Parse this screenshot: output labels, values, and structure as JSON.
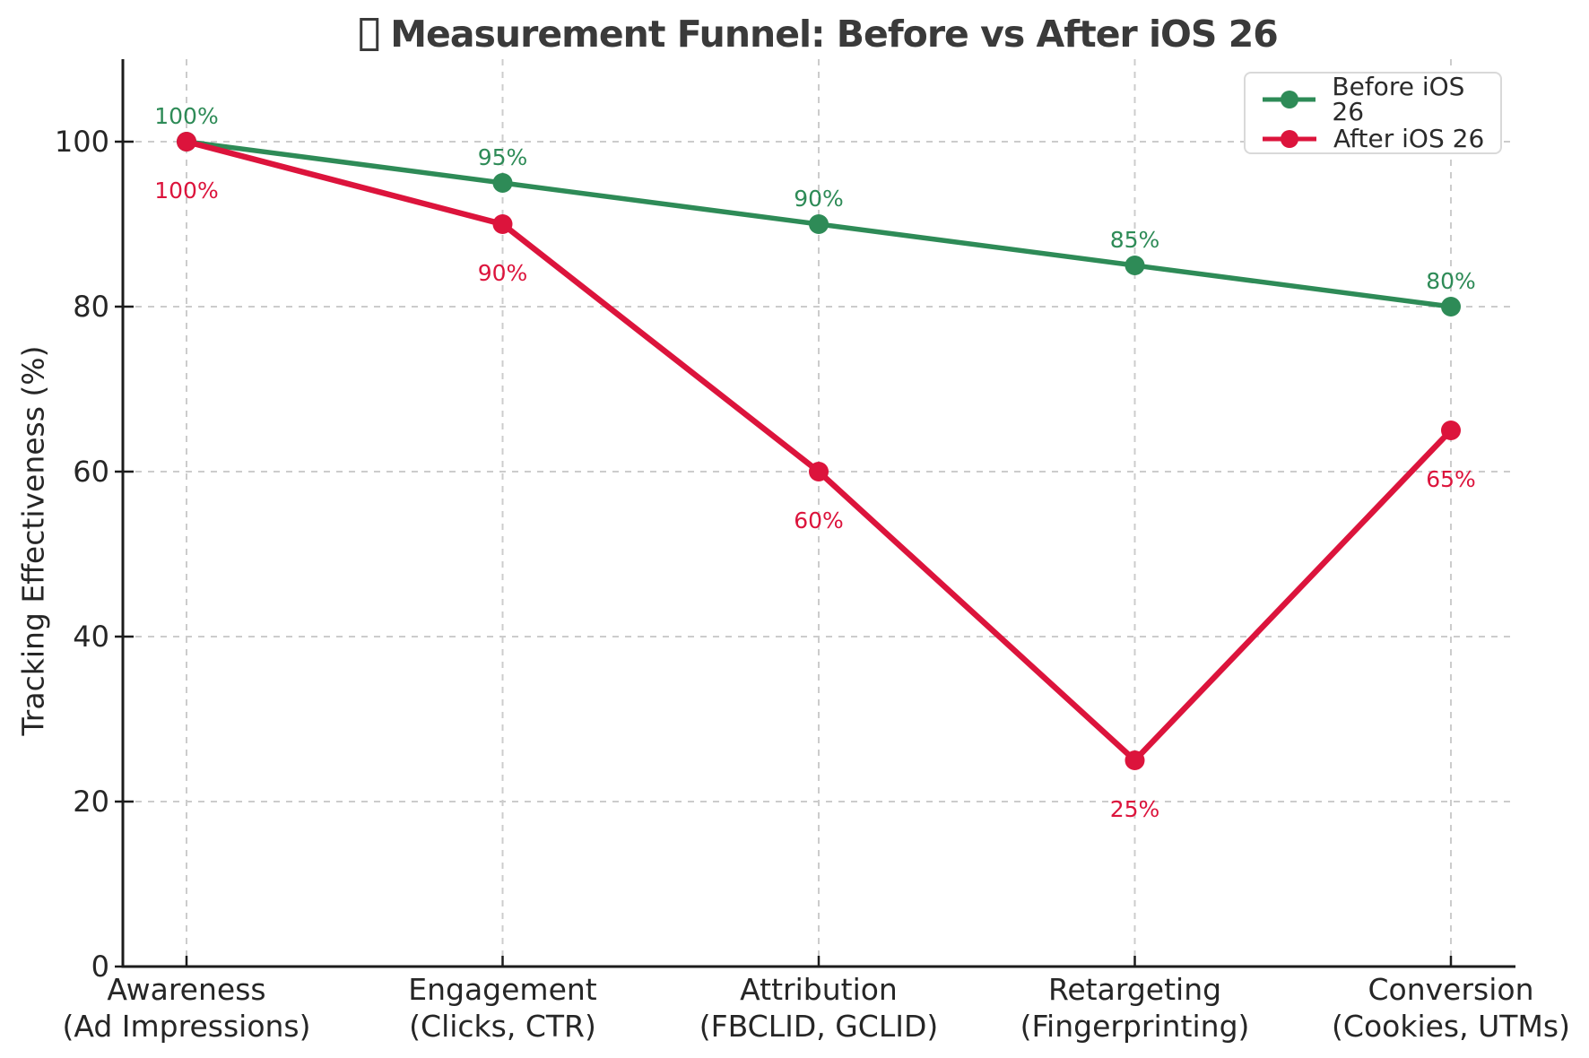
{
  "header": {
    "title": "Measurement Funnel: Before vs After iOS 26",
    "title_missing_glyph": "□"
  },
  "chart_data": {
    "type": "line",
    "title": "Measurement Funnel: Before vs After iOS 26",
    "xlabel": "",
    "ylabel": "Tracking Effectiveness (%)",
    "ylim": [
      0,
      110
    ],
    "yticks": [
      0,
      20,
      40,
      60,
      80,
      100
    ],
    "grid": "dashed",
    "legend_position": "upper right",
    "categories": [
      {
        "label": "Awareness",
        "sublabel": "(Ad Impressions)"
      },
      {
        "label": "Engagement",
        "sublabel": "(Clicks, CTR)"
      },
      {
        "label": "Attribution",
        "sublabel": "(FBCLID, GCLID)"
      },
      {
        "label": "Retargeting",
        "sublabel": "(Fingerprinting)"
      },
      {
        "label": "Conversion",
        "sublabel": "(Cookies, UTMs)"
      }
    ],
    "series": [
      {
        "name": "Before iOS 26",
        "color": "#2e8b57",
        "values": [
          100,
          95,
          90,
          85,
          80
        ],
        "labels": [
          "100%",
          "95%",
          "90%",
          "85%",
          "80%"
        ],
        "label_position": "above"
      },
      {
        "name": "After iOS 26",
        "color": "#dc143c",
        "values": [
          100,
          90,
          60,
          25,
          65
        ],
        "labels": [
          "100%",
          "90%",
          "60%",
          "25%",
          "65%"
        ],
        "label_position": "below"
      }
    ],
    "colors": {
      "grid": "#cccccc",
      "axis": "#1c1c1c",
      "title": "#3a3a3a",
      "tick_label": "#262626",
      "legend_text": "#2b2b2b",
      "legend_border": "#d9d9d9"
    }
  }
}
